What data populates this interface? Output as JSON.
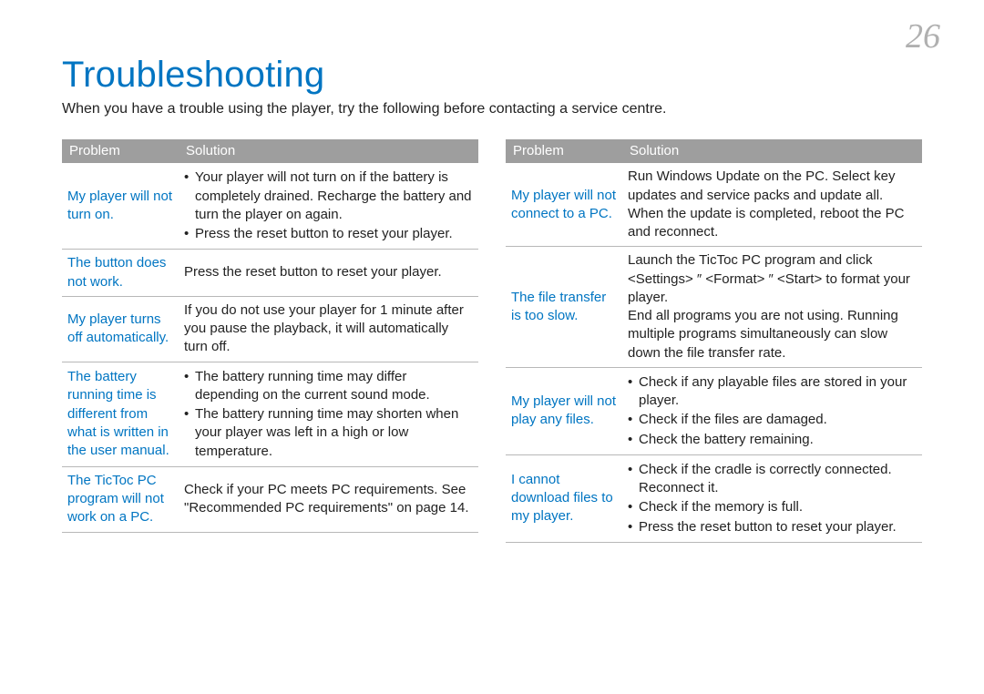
{
  "page_number": "26",
  "title": "Troubleshooting",
  "intro": "When you have a trouble using the player, try the following before contacting a service centre.",
  "headers": {
    "problem": "Problem",
    "solution": "Solution"
  },
  "colors": {
    "accent": "#0075c2",
    "header_bg": "#9e9e9e",
    "header_text": "#ffffff",
    "body_text": "#222222",
    "rule": "#b8b8b8",
    "page_num": "#b0b0b0",
    "background": "#ffffff"
  },
  "typography": {
    "title_fontsize_pt": 30,
    "body_fontsize_pt": 11,
    "page_number_fontsize_pt": 28,
    "font_family": "Arial / Helvetica"
  },
  "left_table": [
    {
      "problem": "My player will not turn on.",
      "solution_type": "bullets",
      "items": [
        "Your player will not turn on if the battery is completely drained. Recharge the battery and turn the player on again.",
        "Press the reset button to reset your player."
      ]
    },
    {
      "problem": "The button does not work.",
      "solution_type": "plain",
      "items": [
        "Press the reset button to reset your player."
      ]
    },
    {
      "problem": "My player turns off automatically.",
      "solution_type": "plain",
      "items": [
        "If you do not use your player for 1 minute after you pause the playback, it will automatically turn off."
      ]
    },
    {
      "problem": "The battery running time is different from what is written in the user manual.",
      "solution_type": "bullets",
      "items": [
        "The battery running time may differ depending on the current sound mode.",
        "The battery running time may shorten when your player was left in a high or low temperature."
      ]
    },
    {
      "problem": "The TicToc PC program will not work on a PC.",
      "solution_type": "plain",
      "items": [
        "Check if your PC meets PC requirements. See \"Recommended PC requirements\" on page 14."
      ]
    }
  ],
  "right_table": [
    {
      "problem": "My player will not connect to a PC.",
      "solution_type": "plain",
      "items": [
        "Run Windows Update on the PC. Select key updates and service packs and update all. When the update is completed, reboot the PC and reconnect."
      ]
    },
    {
      "problem": "The file transfer is too slow.",
      "solution_type": "plain",
      "items": [
        "Launch the TicToc PC program and click <Settings> ″ <Format> ″ <Start> to format your player.\nEnd all programs you are not using. Running multiple programs simultaneously can slow down the file transfer rate."
      ]
    },
    {
      "problem": "My player will not play any files.",
      "solution_type": "bullets",
      "items": [
        "Check if any playable files are stored in your player.",
        "Check if the files are damaged.",
        "Check the battery remaining."
      ]
    },
    {
      "problem": "I cannot download files to my player.",
      "solution_type": "bullets",
      "items": [
        "Check if the cradle is correctly connected. Reconnect it.",
        "Check if the memory is full.",
        "Press the reset button to reset your player."
      ]
    }
  ]
}
